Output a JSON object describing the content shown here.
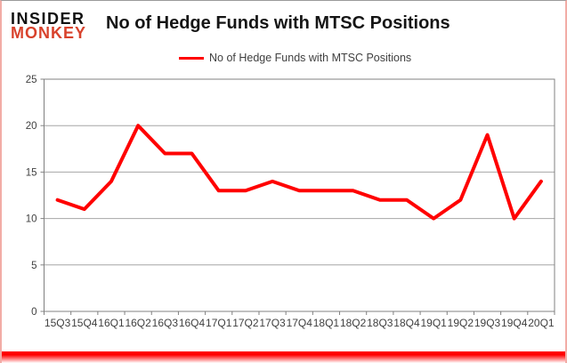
{
  "logo": {
    "line1": "INSIDER",
    "line2": "MONKEY",
    "line2_color": "#d8422c"
  },
  "header": {
    "title": "No of Hedge Funds with MTSC Positions"
  },
  "legend": {
    "label": "No of Hedge Funds with MTSC Positions",
    "line_color": "#ff0000"
  },
  "chart_data": {
    "type": "line",
    "title": "No of Hedge Funds with MTSC Positions",
    "categories": [
      "15Q3",
      "15Q4",
      "16Q1",
      "16Q2",
      "16Q3",
      "16Q4",
      "17Q1",
      "17Q2",
      "17Q3",
      "17Q4",
      "18Q1",
      "18Q2",
      "18Q3",
      "18Q4",
      "19Q1",
      "19Q2",
      "19Q3",
      "19Q4",
      "20Q1"
    ],
    "series": [
      {
        "name": "No of Hedge Funds with MTSC Positions",
        "color": "#ff0000",
        "values": [
          12,
          11,
          14,
          20,
          17,
          17,
          13,
          13,
          14,
          13,
          13,
          13,
          12,
          12,
          10,
          12,
          19,
          10,
          14
        ]
      }
    ],
    "xlabel": "",
    "ylabel": "",
    "ylim": [
      0,
      25
    ],
    "yticks": [
      0,
      5,
      10,
      15,
      20,
      25
    ],
    "grid": "horizontal",
    "legend_position": "top-center"
  },
  "colors": {
    "grid": "#a6a6a6",
    "axis": "#808080",
    "tick_text": "#3f3f3f",
    "frame_side": "#f2aca6",
    "frame_top": "#9a9a9a",
    "bottom_glow": "#ff0000"
  }
}
